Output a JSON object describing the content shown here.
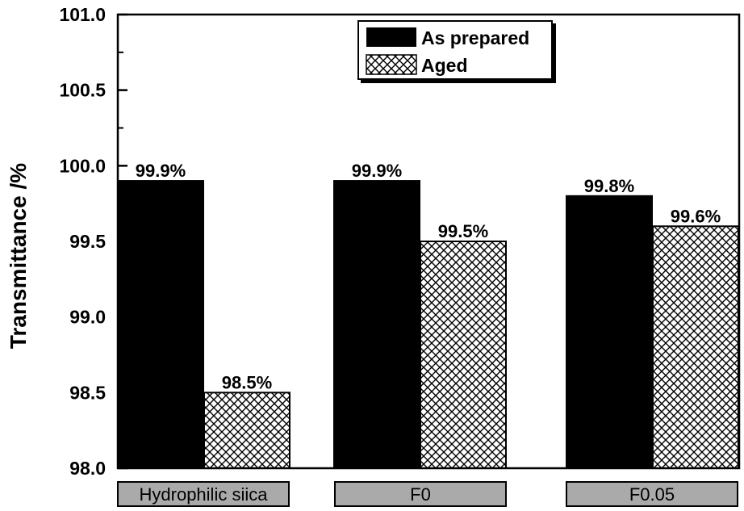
{
  "chart_data": {
    "type": "bar",
    "categories": [
      "Hydrophilic siica",
      "F0",
      "F0.05"
    ],
    "series": [
      {
        "name": "As prepared",
        "values": [
          99.9,
          99.9,
          99.8
        ],
        "labels": [
          "99.9%",
          "99.9%",
          "99.8%"
        ],
        "fill": "solid-black"
      },
      {
        "name": "Aged",
        "values": [
          98.5,
          99.5,
          99.6
        ],
        "labels": [
          "98.5%",
          "99.5%",
          "99.6%"
        ],
        "fill": "crosshatch"
      }
    ],
    "title": "",
    "xlabel": "",
    "ylabel": "Transmittance /%",
    "ylim": [
      98.0,
      101.0
    ],
    "yticks": [
      "98.0",
      "98.5",
      "99.0",
      "99.5",
      "100.0",
      "100.5",
      "101.0"
    ],
    "grid": false,
    "legend_position": "top-center"
  },
  "colors": {
    "bar_solid": "#000000",
    "category_box": "#aaaaaa",
    "background": "#ffffff"
  }
}
